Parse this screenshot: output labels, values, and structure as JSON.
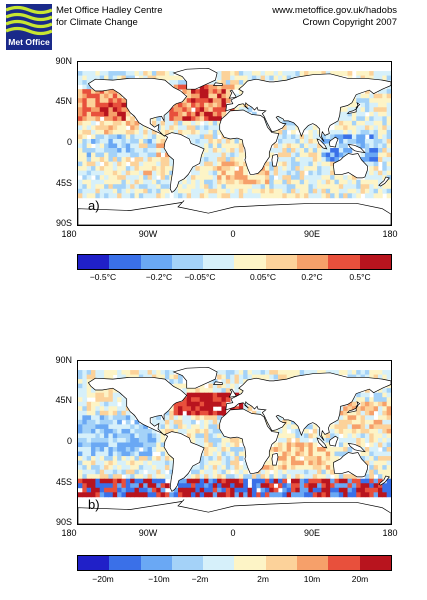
{
  "header": {
    "org_line1": "Met Office Hadley Centre",
    "org_line2": "for Climate Change",
    "url": "www.metoffice.gov.uk/hadobs",
    "copyright": "Crown Copyright 2007",
    "logo_text": "Met Office"
  },
  "lat_labels": [
    "90N",
    "45N",
    "0",
    "45S",
    "90S"
  ],
  "lon_labels": [
    "180",
    "90W",
    "0",
    "90E",
    "180"
  ],
  "panel_a": {
    "label": "a)",
    "colorbar_labels": [
      "−0.5°C",
      "−0.2°C",
      "−0.05°C",
      "0.05°C",
      "0.2°C",
      "0.5°C"
    ]
  },
  "panel_b": {
    "label": "b)",
    "colorbar_labels": [
      "−20m",
      "−10m",
      "−2m",
      "2m",
      "10m",
      "20m"
    ]
  },
  "colors": [
    "#2020c8",
    "#3a70e8",
    "#6aa8f4",
    "#a4d2f8",
    "#d6f0fa",
    "#fdf4c6",
    "#fcd29a",
    "#f6a06a",
    "#e8503c",
    "#b8141e"
  ]
}
